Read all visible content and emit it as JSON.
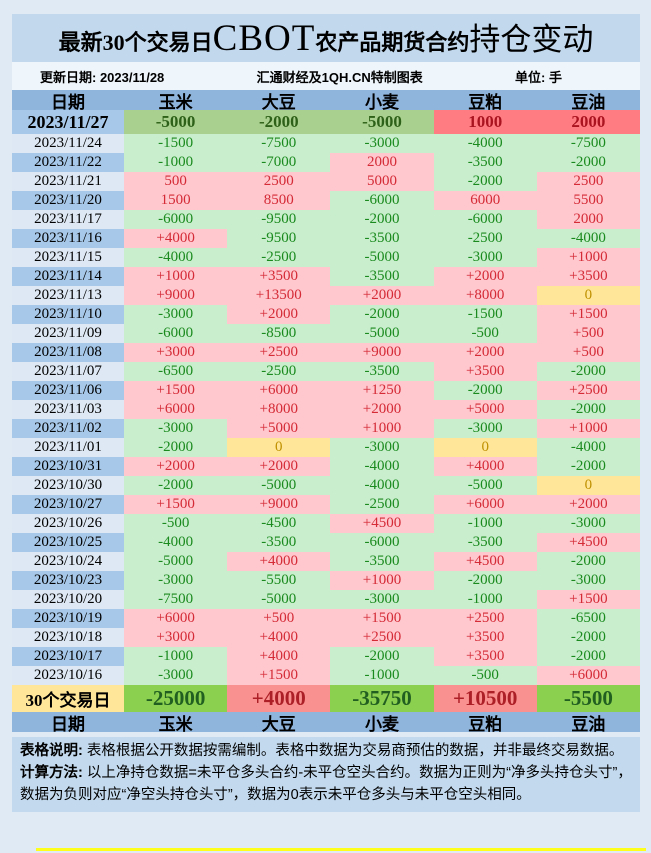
{
  "title": {
    "part1": "最新30个交易日",
    "part2": "CBOT",
    "part3": "农产品期货合约",
    "part4": "持仓变动"
  },
  "info": {
    "update": "更新日期: 2023/11/28",
    "source": "汇通财经及1QH.CN特制图表",
    "unit": "单位: 手"
  },
  "chart_data": {
    "type": "table",
    "title": "最新30个交易日CBOT农产品期货合约持仓变动",
    "unit": "手",
    "columns": [
      "日期",
      "玉米",
      "大豆",
      "小麦",
      "豆粕",
      "豆油"
    ],
    "rows": [
      {
        "date": "2023/11/27",
        "values": [
          "-5000",
          "-2000",
          "-5000",
          "1000",
          "2000"
        ],
        "styles": [
          "g",
          "g",
          "g",
          "p",
          "p"
        ]
      },
      {
        "date": "2023/11/24",
        "values": [
          "-1500",
          "-7500",
          "-3000",
          "-4000",
          "-7500"
        ],
        "styles": [
          "g",
          "g",
          "g",
          "g",
          "g"
        ]
      },
      {
        "date": "2023/11/22",
        "values": [
          "-1000",
          "-7000",
          "2000",
          "-3500",
          "-2000"
        ],
        "styles": [
          "g",
          "g",
          "p",
          "g",
          "g"
        ]
      },
      {
        "date": "2023/11/21",
        "values": [
          "500",
          "2500",
          "5000",
          "-2000",
          "2500"
        ],
        "styles": [
          "p",
          "p",
          "p",
          "g",
          "p"
        ]
      },
      {
        "date": "2023/11/20",
        "values": [
          "1500",
          "8500",
          "-6000",
          "6000",
          "5500"
        ],
        "styles": [
          "p",
          "p",
          "g",
          "p",
          "p"
        ]
      },
      {
        "date": "2023/11/17",
        "values": [
          "-6000",
          "-9500",
          "-2000",
          "-6000",
          "2000"
        ],
        "styles": [
          "g",
          "g",
          "g",
          "g",
          "p"
        ]
      },
      {
        "date": "2023/11/16",
        "values": [
          "+4000",
          "-9500",
          "-3500",
          "-2500",
          "-4000"
        ],
        "styles": [
          "p",
          "g",
          "g",
          "g",
          "g"
        ]
      },
      {
        "date": "2023/11/15",
        "values": [
          "-4000",
          "-2500",
          "-5000",
          "-3000",
          "+1000"
        ],
        "styles": [
          "g",
          "g",
          "g",
          "g",
          "p"
        ]
      },
      {
        "date": "2023/11/14",
        "values": [
          "+1000",
          "+3500",
          "-3500",
          "+2000",
          "+3500"
        ],
        "styles": [
          "p",
          "p",
          "g",
          "p",
          "p"
        ]
      },
      {
        "date": "2023/11/13",
        "values": [
          "+9000",
          "+13500",
          "+2000",
          "+8000",
          "0"
        ],
        "styles": [
          "p",
          "p",
          "p",
          "p",
          "y"
        ]
      },
      {
        "date": "2023/11/10",
        "values": [
          "-3000",
          "+2000",
          "-2000",
          "-1500",
          "+1500"
        ],
        "styles": [
          "g",
          "p",
          "g",
          "g",
          "p"
        ]
      },
      {
        "date": "2023/11/09",
        "values": [
          "-6000",
          "-8500",
          "-5000",
          "-500",
          "+500"
        ],
        "styles": [
          "g",
          "g",
          "g",
          "g",
          "p"
        ]
      },
      {
        "date": "2023/11/08",
        "values": [
          "+3000",
          "+2500",
          "+9000",
          "+2000",
          "+500"
        ],
        "styles": [
          "p",
          "p",
          "p",
          "p",
          "p"
        ]
      },
      {
        "date": "2023/11/07",
        "values": [
          "-6500",
          "-2500",
          "-3500",
          "+3500",
          "-2000"
        ],
        "styles": [
          "g",
          "g",
          "g",
          "p",
          "g"
        ]
      },
      {
        "date": "2023/11/06",
        "values": [
          "+1500",
          "+6000",
          "+1250",
          "-2000",
          "+2500"
        ],
        "styles": [
          "p",
          "p",
          "p",
          "g",
          "p"
        ]
      },
      {
        "date": "2023/11/03",
        "values": [
          "+6000",
          "+8000",
          "+2000",
          "+5000",
          "-2000"
        ],
        "styles": [
          "p",
          "p",
          "p",
          "p",
          "g"
        ]
      },
      {
        "date": "2023/11/02",
        "values": [
          "-3000",
          "+5000",
          "+1000",
          "-3000",
          "+1000"
        ],
        "styles": [
          "g",
          "p",
          "p",
          "g",
          "p"
        ]
      },
      {
        "date": "2023/11/01",
        "values": [
          "-2000",
          "0",
          "-3000",
          "0",
          "-4000"
        ],
        "styles": [
          "g",
          "y",
          "g",
          "y",
          "g"
        ]
      },
      {
        "date": "2023/10/31",
        "values": [
          "+2000",
          "+2000",
          "-4000",
          "+4000",
          "-2000"
        ],
        "styles": [
          "p",
          "p",
          "g",
          "p",
          "g"
        ]
      },
      {
        "date": "2023/10/30",
        "values": [
          "-2000",
          "-5000",
          "-4000",
          "-5000",
          "0"
        ],
        "styles": [
          "g",
          "g",
          "g",
          "g",
          "y"
        ]
      },
      {
        "date": "2023/10/27",
        "values": [
          "+1500",
          "+9000",
          "-2500",
          "+6000",
          "+2000"
        ],
        "styles": [
          "p",
          "p",
          "g",
          "p",
          "p"
        ]
      },
      {
        "date": "2023/10/26",
        "values": [
          "-500",
          "-4500",
          "+4500",
          "-1000",
          "-3000"
        ],
        "styles": [
          "g",
          "g",
          "p",
          "g",
          "g"
        ]
      },
      {
        "date": "2023/10/25",
        "values": [
          "-4000",
          "-3500",
          "-6000",
          "-3500",
          "+4500"
        ],
        "styles": [
          "g",
          "g",
          "g",
          "g",
          "p"
        ]
      },
      {
        "date": "2023/10/24",
        "values": [
          "-5000",
          "+4000",
          "-3500",
          "+4500",
          "-2000"
        ],
        "styles": [
          "g",
          "p",
          "g",
          "p",
          "g"
        ]
      },
      {
        "date": "2023/10/23",
        "values": [
          "-3000",
          "-5500",
          "+1000",
          "-2000",
          "-3000"
        ],
        "styles": [
          "g",
          "g",
          "p",
          "g",
          "g"
        ]
      },
      {
        "date": "2023/10/20",
        "values": [
          "-7500",
          "-5000",
          "-3000",
          "-1000",
          "+1500"
        ],
        "styles": [
          "g",
          "g",
          "g",
          "g",
          "p"
        ]
      },
      {
        "date": "2023/10/19",
        "values": [
          "+6000",
          "+500",
          "+1500",
          "+2500",
          "-6500"
        ],
        "styles": [
          "p",
          "p",
          "p",
          "p",
          "g"
        ]
      },
      {
        "date": "2023/10/18",
        "values": [
          "+3000",
          "+4000",
          "+2500",
          "+3500",
          "-2000"
        ],
        "styles": [
          "p",
          "p",
          "p",
          "p",
          "g"
        ]
      },
      {
        "date": "2023/10/17",
        "values": [
          "-1000",
          "+4000",
          "-2000",
          "+3500",
          "-2000"
        ],
        "styles": [
          "g",
          "p",
          "g",
          "p",
          "g"
        ]
      },
      {
        "date": "2023/10/16",
        "values": [
          "-3000",
          "+1500",
          "-1000",
          "-500",
          "+6000"
        ],
        "styles": [
          "g",
          "p",
          "g",
          "g",
          "p"
        ]
      }
    ],
    "summary": {
      "label": "30个交易日",
      "values": [
        "-25000",
        "+4000",
        "-35750",
        "+10500",
        "-5500"
      ],
      "styles": [
        "g",
        "p",
        "g",
        "p",
        "g"
      ]
    }
  },
  "notes": [
    {
      "label": "表格说明:",
      "text": " 表格根据公开数据按需编制。表格中数据为交易商预估的数据，并非最终交易数据。"
    },
    {
      "label": "计算方法:",
      "text": " 以上净持仓数据=未平仓多头合约-未平仓空头合约。数据为正则为“净多头持仓头寸”，数据为负则对应“净空头持仓头寸”，数据为0表示未平仓多头与未平仓空头相同。"
    }
  ],
  "colors": {
    "page_bg": "#dfeaf5",
    "title_bg": "#c1d8ed",
    "header_bg": "#90b5dd",
    "date_stripe": "#a7c8e9",
    "date_light": "#dde8f4",
    "positive_bg": "#ffc7ce",
    "positive_text": "#d42b36",
    "negative_bg": "#c9eecd",
    "negative_text": "#1a8a1e",
    "zero_bg": "#ffe699",
    "zero_text": "#bf9000",
    "latest_neg_bg": "#a9d08e",
    "latest_pos_bg": "#ff7d82",
    "summary_label_bg": "#ffe699",
    "summary_neg_bg": "#8bd04f",
    "summary_pos_bg": "#f8918f",
    "marquee_line": "#ffff1c"
  }
}
